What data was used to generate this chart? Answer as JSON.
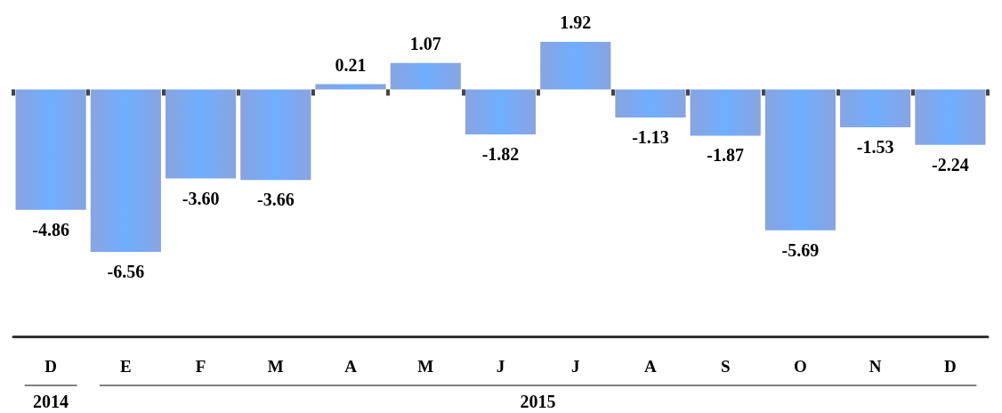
{
  "chart_data": {
    "type": "bar",
    "categories": [
      "D",
      "E",
      "F",
      "M",
      "A",
      "M",
      "J",
      "J",
      "A",
      "S",
      "O",
      "N",
      "D"
    ],
    "values": [
      -4.86,
      -6.56,
      -3.6,
      -3.66,
      0.21,
      1.07,
      -1.82,
      1.92,
      -1.13,
      -1.87,
      -5.69,
      -1.53,
      -2.24
    ],
    "value_labels": [
      "-4.86",
      "-6.56",
      "-3.60",
      "-3.66",
      "0.21",
      "1.07",
      "-1.82",
      "1.92",
      "-1.13",
      "-1.87",
      "-5.69",
      "-1.53",
      "-2.24"
    ],
    "color": "#4a74d0",
    "grid": false,
    "annotations": [
      "2014",
      "2015"
    ]
  }
}
